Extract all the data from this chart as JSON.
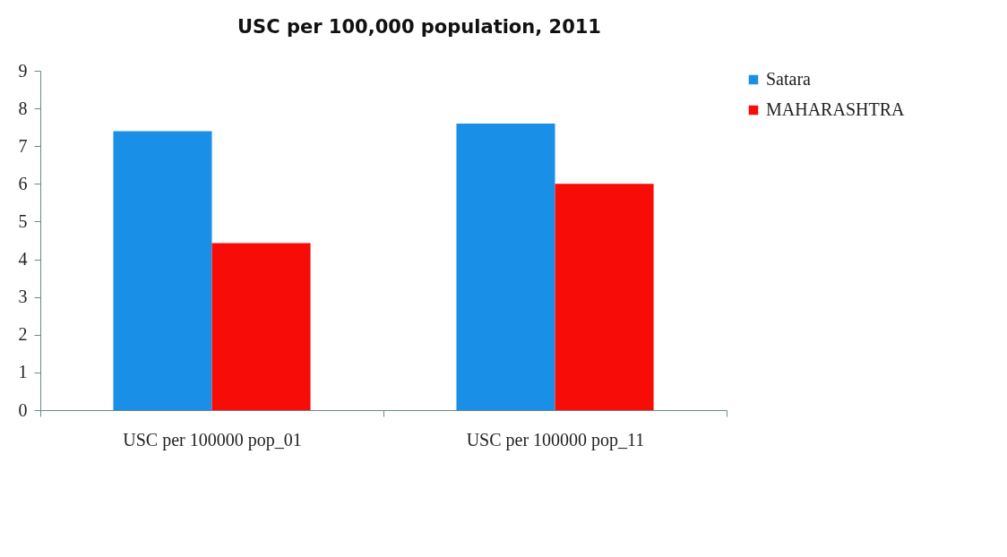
{
  "chart_data": {
    "type": "bar",
    "title": "USC  per 100,000 population, 2011",
    "categories": [
      "USC per 100000 pop_01",
      "USC per 100000 pop_11"
    ],
    "series": [
      {
        "name": "Satara",
        "color": "#1a8fe8",
        "values": [
          7.4,
          7.6
        ]
      },
      {
        "name": "MAHARASHTRA",
        "color": "#f70c07",
        "values": [
          4.43,
          6.0
        ]
      }
    ],
    "ylim": [
      0,
      9
    ],
    "yticks": [
      0,
      1,
      2,
      3,
      4,
      5,
      6,
      7,
      8,
      9
    ],
    "grid": false,
    "legend": "right"
  }
}
